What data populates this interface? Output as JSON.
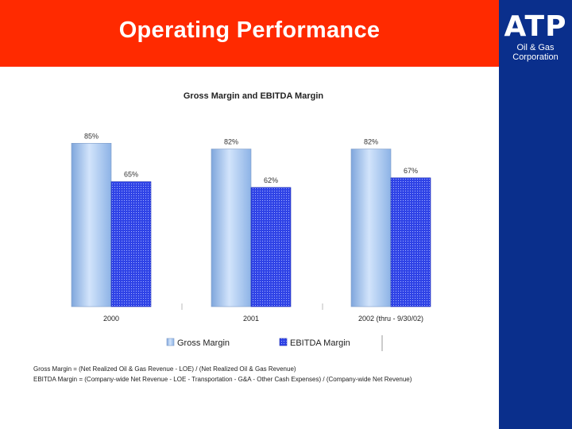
{
  "header": {
    "title": "Operating Performance"
  },
  "logo": {
    "mark": "ATP",
    "line1": "Oil & Gas",
    "line2": "Corporation"
  },
  "colors": {
    "header_bg": "#ff2a00",
    "sidebar_bg": "#0a2f8c",
    "gross_margin": "#a9c8f2",
    "ebitda_margin": "#2c3fe0"
  },
  "chart_data": {
    "type": "bar",
    "title": "Gross Margin and EBITDA Margin",
    "categories": [
      "2000",
      "2001",
      "2002 (thru - 9/30/02)"
    ],
    "series": [
      {
        "name": "Gross Margin",
        "values": [
          85,
          82,
          82
        ],
        "labels": [
          "85%",
          "82%",
          "82%"
        ]
      },
      {
        "name": "EBITDA Margin",
        "values": [
          65,
          62,
          67
        ],
        "labels": [
          "65%",
          "62%",
          "67%"
        ]
      }
    ],
    "ylim": [
      0,
      100
    ],
    "xlabel": "",
    "ylabel": "",
    "grid": false,
    "legend_position": "bottom"
  },
  "footnotes": {
    "gross": "Gross Margin = (Net Realized Oil & Gas Revenue - LOE) / (Net Realized Oil & Gas Revenue)",
    "ebitda": "EBITDA Margin = (Company-wide Net Revenue - LOE - Transportation - G&A - Other Cash Expenses) / (Company-wide Net Revenue)"
  }
}
